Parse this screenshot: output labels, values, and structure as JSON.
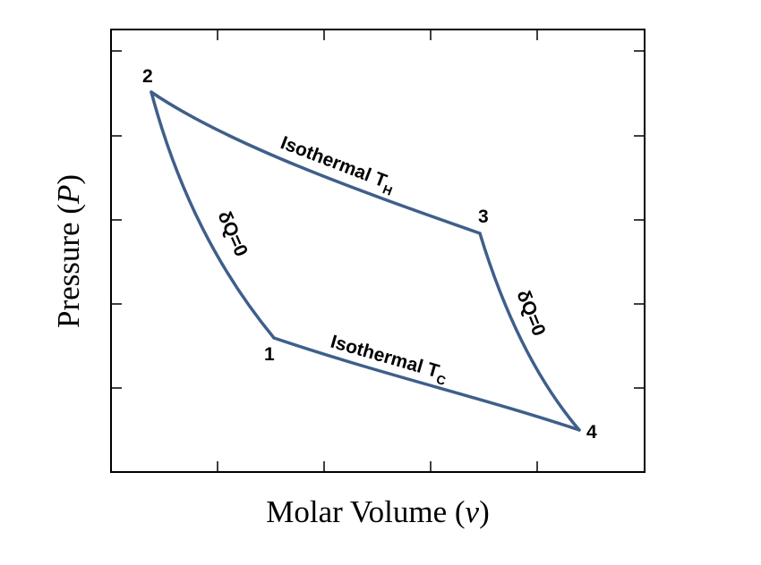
{
  "axes": {
    "x_label": {
      "text": "Molar Volume (",
      "symbol": "v",
      "close": ")"
    },
    "y_label": {
      "text": "Pressure (",
      "symbol": "P",
      "close": ")"
    }
  },
  "points": [
    {
      "id": "1",
      "label": "1"
    },
    {
      "id": "2",
      "label": "2"
    },
    {
      "id": "3",
      "label": "3"
    },
    {
      "id": "4",
      "label": "4"
    }
  ],
  "processes": {
    "isothermal_hot": {
      "text": "Isothermal T",
      "sub": "H"
    },
    "isothermal_cold": {
      "text": "Isothermal T",
      "sub": "C"
    },
    "adiabat_left": {
      "text": "δQ=0"
    },
    "adiabat_right": {
      "text": "δQ=0"
    }
  },
  "colors": {
    "curve": "#3f5f8a",
    "frame": "#000000"
  }
}
